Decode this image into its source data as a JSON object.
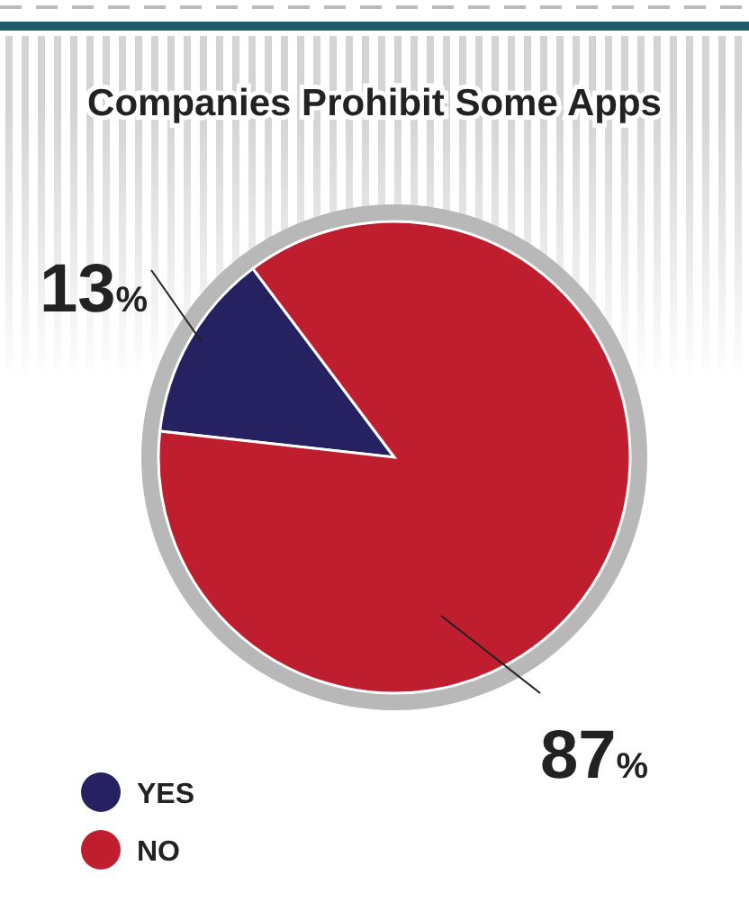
{
  "chart_data": {
    "type": "pie",
    "title": "Companies Prohibit Some Apps",
    "categories": [
      "YES",
      "NO"
    ],
    "values": [
      13,
      87
    ],
    "colors": [
      "#262262",
      "#be1e2d"
    ],
    "value_labels": [
      "13%",
      "87%"
    ],
    "legend": "bottom left"
  }
}
